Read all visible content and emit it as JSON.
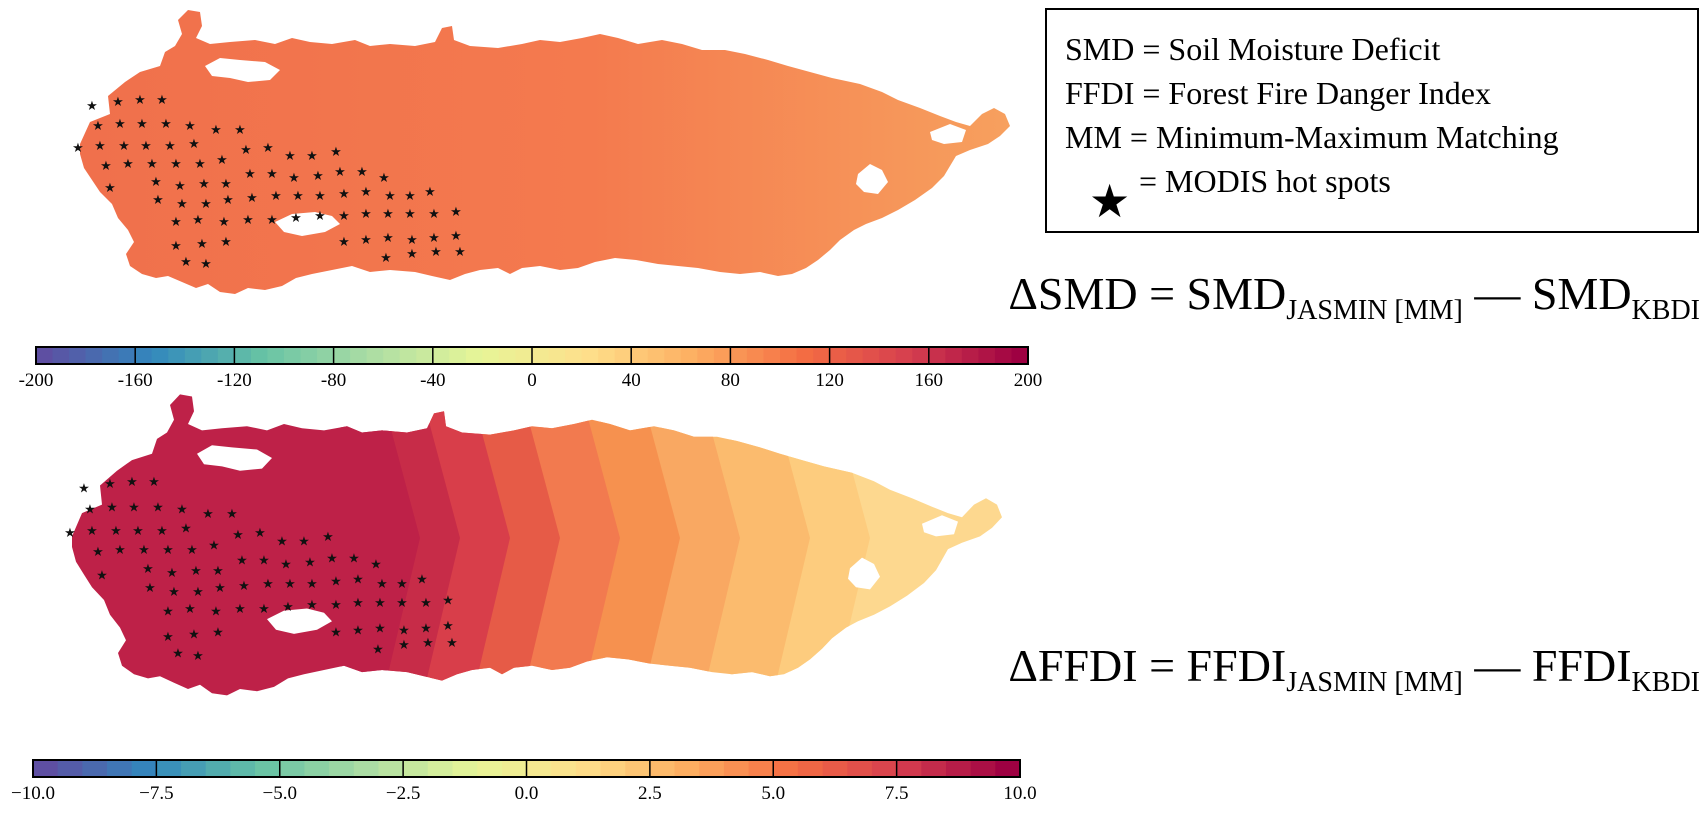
{
  "legend": {
    "lines": [
      "SMD = Soil Moisture Deficit",
      "FFDI = Forest Fire Danger Index",
      "MM = Minimum-Maximum Matching"
    ],
    "star_glyph": "★",
    "star_label": "= MODIS hot spots"
  },
  "equations": {
    "smd": {
      "lhs": "ΔSMD = SMD",
      "sub1": "JASMIN [MM]",
      "mid": " — SMD",
      "sub2": "KBDI"
    },
    "ffdi": {
      "lhs": "ΔFFDI = FFDI",
      "sub1": "JASMIN [MM]",
      "mid": " — FFDI",
      "sub2": "KBDI"
    }
  },
  "colorbars": {
    "smd": {
      "range": [
        -200,
        200
      ],
      "tick_labels": [
        "-200",
        "-160",
        "-120",
        "-80",
        "-40",
        "0",
        "40",
        "80",
        "120",
        "160",
        "200"
      ],
      "colors": [
        "#5e4fa2",
        "#3288bd",
        "#66c2a5",
        "#abdda4",
        "#e6f598",
        "#fee08b",
        "#fdae61",
        "#f46d43",
        "#d53e4f",
        "#9e0142"
      ]
    },
    "ffdi": {
      "range": [
        -10.0,
        10.0
      ],
      "tick_labels": [
        "−10.0",
        "−7.5",
        "−5.0",
        "−2.5",
        "0.0",
        "2.5",
        "5.0",
        "7.5",
        "10.0"
      ],
      "colors": [
        "#5e4fa2",
        "#3288bd",
        "#66c2a5",
        "#abdda4",
        "#e6f598",
        "#fee08b",
        "#fdae61",
        "#f46d43",
        "#d53e4f",
        "#9e0142"
      ]
    }
  },
  "maps": {
    "smd": {
      "fill_west": "#f0704c",
      "fill_mid": "#f47a4e",
      "fill_east": "#f7a05e"
    },
    "ffdi": {
      "band_colors": [
        "#be2148",
        "#c72c48",
        "#d83e4a",
        "#e65b47",
        "#f27a4f",
        "#f6914f",
        "#f9a862",
        "#fbbb6e",
        "#fdcc7e",
        "#fdd88f"
      ]
    }
  },
  "hotspot_glyph": "★"
}
